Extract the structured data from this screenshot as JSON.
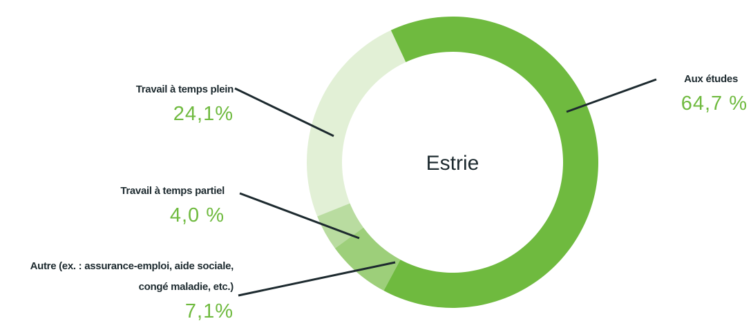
{
  "chart_data": {
    "type": "pie",
    "title": "Estrie",
    "categories": [
      "Aux études",
      "Autre (ex. : assurance-emploi, aide sociale, congé maladie, etc.)",
      "Travail à temps partiel",
      "Travail à temps plein"
    ],
    "values": [
      64.7,
      7.1,
      4.0,
      24.1
    ],
    "value_labels": [
      "64,7 %",
      "7,1%",
      "4,0 %",
      "24,1%"
    ],
    "colors": [
      "#6fba3f",
      "#9dcf7a",
      "#b9dca0",
      "#e2f0d6"
    ]
  }
}
